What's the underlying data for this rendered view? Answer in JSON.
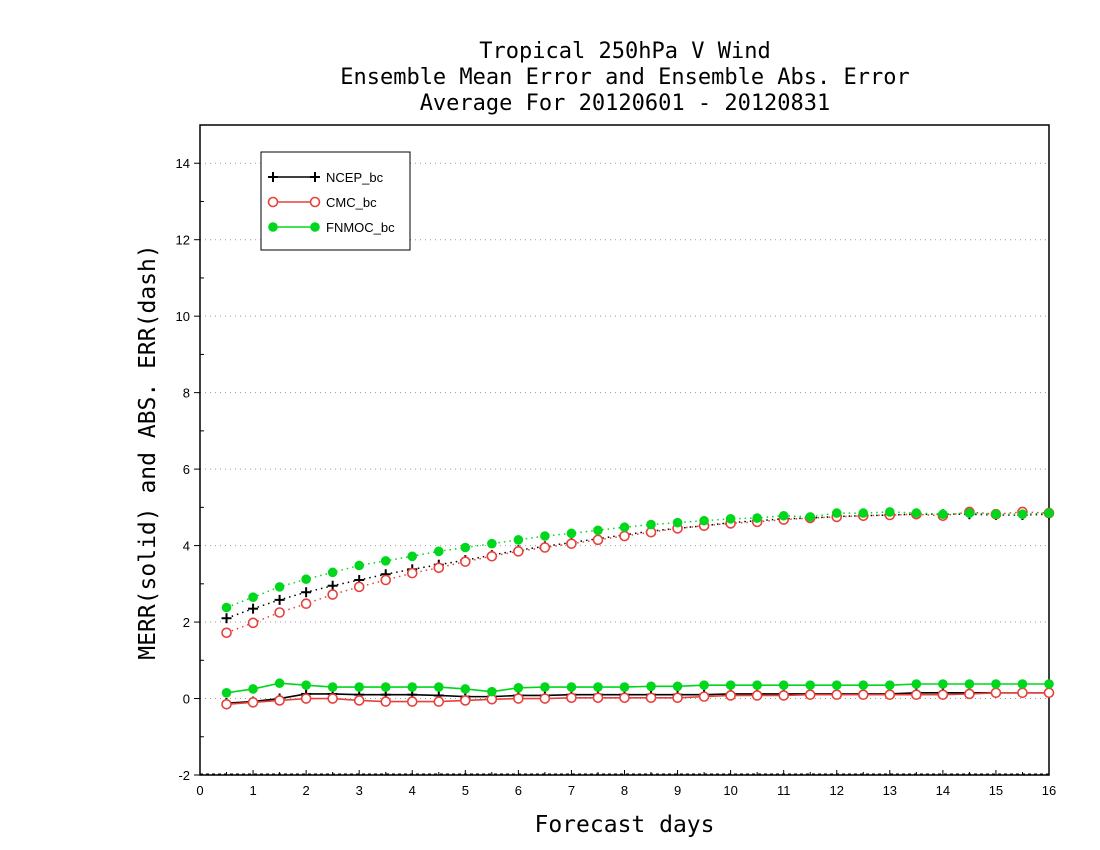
{
  "chart_data": {
    "type": "line",
    "title": [
      "Tropical 250hPa V Wind",
      "Ensemble Mean Error and Ensemble Abs. Error",
      "Average For 20120601 - 20120831"
    ],
    "xlabel": "Forecast days",
    "ylabel": "MERR(solid) and ABS. ERR(dash)",
    "xlim": [
      0,
      16
    ],
    "ylim": [
      -2,
      15
    ],
    "xticks": [
      0,
      1,
      2,
      3,
      4,
      5,
      6,
      7,
      8,
      9,
      10,
      11,
      12,
      13,
      14,
      15,
      16
    ],
    "yticks": [
      -2,
      0,
      2,
      4,
      6,
      8,
      10,
      12,
      14
    ],
    "grid": "horizontal-dotted",
    "legend_position": "top-left",
    "x": [
      0.5,
      1,
      1.5,
      2,
      2.5,
      3,
      3.5,
      4,
      4.5,
      5,
      5.5,
      6,
      6.5,
      7,
      7.5,
      8,
      8.5,
      9,
      9.5,
      10,
      10.5,
      11,
      11.5,
      12,
      12.5,
      13,
      13.5,
      14,
      14.5,
      15,
      15.5,
      16
    ],
    "series": [
      {
        "name": "NCEP_bc",
        "color": "#000000",
        "marker": "plus",
        "merr": [
          -0.12,
          -0.08,
          0.0,
          0.12,
          0.12,
          0.1,
          0.1,
          0.1,
          0.08,
          0.05,
          0.05,
          0.08,
          0.08,
          0.1,
          0.1,
          0.1,
          0.1,
          0.1,
          0.1,
          0.12,
          0.12,
          0.12,
          0.12,
          0.12,
          0.12,
          0.12,
          0.15,
          0.15,
          0.15,
          0.15,
          0.15,
          0.15
        ],
        "abs_err": [
          2.1,
          2.35,
          2.58,
          2.78,
          2.95,
          3.1,
          3.25,
          3.38,
          3.5,
          3.62,
          3.75,
          3.88,
          3.98,
          4.08,
          4.18,
          4.28,
          4.38,
          4.45,
          4.52,
          4.6,
          4.65,
          4.7,
          4.72,
          4.76,
          4.78,
          4.8,
          4.82,
          4.82,
          4.82,
          4.8,
          4.8,
          4.82
        ]
      },
      {
        "name": "CMC_bc",
        "color": "#e8413c",
        "marker": "open-circle",
        "merr": [
          -0.15,
          -0.1,
          -0.05,
          0.0,
          0.0,
          -0.05,
          -0.08,
          -0.08,
          -0.08,
          -0.05,
          -0.02,
          0.0,
          0.0,
          0.02,
          0.02,
          0.02,
          0.02,
          0.02,
          0.05,
          0.08,
          0.08,
          0.08,
          0.1,
          0.1,
          0.1,
          0.1,
          0.1,
          0.1,
          0.12,
          0.15,
          0.15,
          0.15
        ],
        "abs_err": [
          1.72,
          1.98,
          2.25,
          2.48,
          2.72,
          2.92,
          3.1,
          3.28,
          3.42,
          3.58,
          3.72,
          3.85,
          3.95,
          4.05,
          4.15,
          4.25,
          4.35,
          4.45,
          4.52,
          4.58,
          4.62,
          4.68,
          4.72,
          4.75,
          4.78,
          4.8,
          4.82,
          4.78,
          4.88,
          4.82,
          4.88,
          4.85
        ]
      },
      {
        "name": "FNMOC_bc",
        "color": "#00d71c",
        "marker": "filled-circle",
        "merr": [
          0.15,
          0.25,
          0.4,
          0.35,
          0.3,
          0.3,
          0.3,
          0.3,
          0.3,
          0.25,
          0.18,
          0.28,
          0.3,
          0.3,
          0.3,
          0.3,
          0.32,
          0.32,
          0.35,
          0.35,
          0.35,
          0.35,
          0.35,
          0.35,
          0.35,
          0.35,
          0.38,
          0.38,
          0.38,
          0.38,
          0.38,
          0.38
        ],
        "abs_err": [
          2.38,
          2.65,
          2.92,
          3.12,
          3.3,
          3.48,
          3.6,
          3.72,
          3.85,
          3.95,
          4.05,
          4.15,
          4.25,
          4.32,
          4.4,
          4.48,
          4.55,
          4.6,
          4.65,
          4.7,
          4.72,
          4.78,
          4.75,
          4.85,
          4.85,
          4.88,
          4.85,
          4.82,
          4.85,
          4.82,
          4.82,
          4.85
        ]
      }
    ]
  }
}
